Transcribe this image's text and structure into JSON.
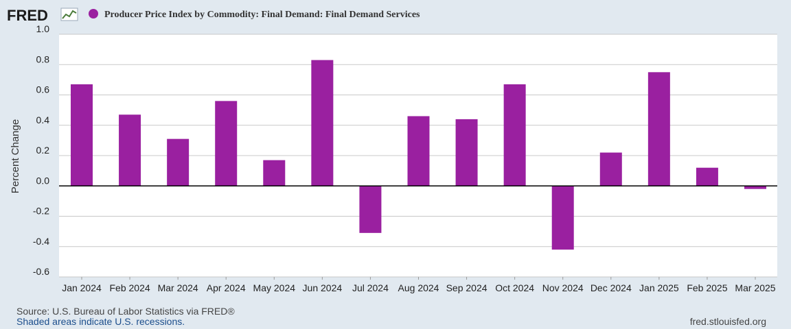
{
  "header": {
    "logo_text": "FRED",
    "series_title": "Producer Price Index by Commodity: Final Demand: Final Demand Services"
  },
  "footer": {
    "source": "Source: U.S. Bureau of Labor Statistics via FRED®",
    "recessions": "Shaded areas indicate U.S. recessions.",
    "url": "fred.stlouisfed.org"
  },
  "colors": {
    "bar": "#9a20a0",
    "background": "#e1e9f0",
    "plot": "#ffffff",
    "grid": "#c8c8c8",
    "zero_line": "#000000"
  },
  "chart_data": {
    "type": "bar",
    "title": "Producer Price Index by Commodity: Final Demand: Final Demand Services",
    "ylabel": "Percent Change",
    "xlabel": "",
    "ylim": [
      -0.6,
      1.0
    ],
    "yticks": [
      "1.0",
      "0.8",
      "0.6",
      "0.4",
      "0.2",
      "0.0",
      "-0.2",
      "-0.4",
      "-0.6"
    ],
    "ytick_values": [
      1.0,
      0.8,
      0.6,
      0.4,
      0.2,
      0.0,
      -0.2,
      -0.4,
      -0.6
    ],
    "grid": true,
    "legend": "top-left",
    "categories": [
      "Jan 2024",
      "Feb 2024",
      "Mar 2024",
      "Apr 2024",
      "May 2024",
      "Jun 2024",
      "Jul 2024",
      "Aug 2024",
      "Sep 2024",
      "Oct 2024",
      "Nov 2024",
      "Dec 2024",
      "Jan 2025",
      "Feb 2025",
      "Mar 2025"
    ],
    "values": [
      0.67,
      0.47,
      0.31,
      0.56,
      0.17,
      0.83,
      -0.31,
      0.46,
      0.44,
      0.67,
      -0.42,
      0.22,
      0.75,
      0.12,
      -0.02
    ]
  }
}
